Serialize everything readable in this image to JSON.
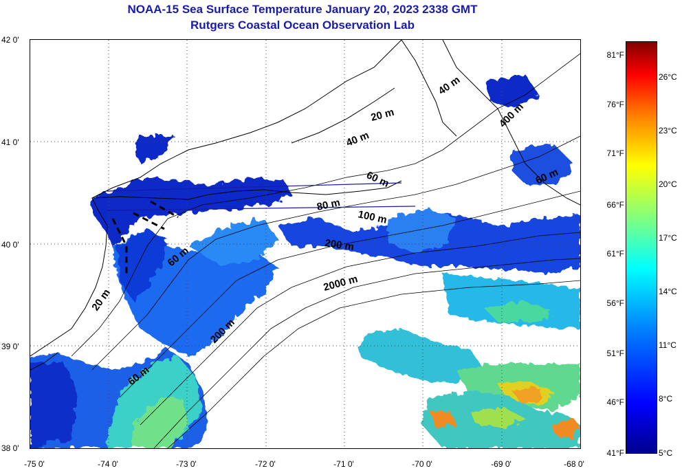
{
  "title": {
    "line1": "NOAA-15 Sea Surface Temperature January 20, 2023 2338 GMT",
    "line2": "Rutgers Coastal Ocean Observation Lab"
  },
  "map": {
    "lat_ticks": [
      "42 0'",
      "41 0'",
      "40 0'",
      "39 0'",
      "38 0'"
    ],
    "lon_ticks": [
      "-75 0'",
      "-74 0'",
      "-73 0'",
      "-72 0'",
      "-71 0'",
      "-70 0'",
      "-69 0'",
      "-68 0'"
    ],
    "lat_range": [
      38,
      42
    ],
    "lon_range": [
      -75,
      -68
    ],
    "grid": "dotted",
    "isobath_labels": [
      {
        "text": "20 m"
      },
      {
        "text": "40 m"
      },
      {
        "text": "60 m"
      },
      {
        "text": "80 m"
      },
      {
        "text": "100 m"
      },
      {
        "text": "200 m"
      },
      {
        "text": "2000 m"
      },
      {
        "text": "40 m"
      },
      {
        "text": "400 m"
      },
      {
        "text": "60 m"
      },
      {
        "text": "60 m"
      },
      {
        "text": "20 m"
      },
      {
        "text": "200 m"
      },
      {
        "text": "60 m"
      }
    ]
  },
  "colorbar": {
    "fahrenheit": [
      "81°F",
      "76°F",
      "71°F",
      "66°F",
      "61°F",
      "56°F",
      "51°F",
      "46°F",
      "41°F"
    ],
    "celsius": [
      "26°C",
      "23°C",
      "20°C",
      "17°C",
      "14°C",
      "11°C",
      "8°C",
      "5°C"
    ],
    "colors": [
      "#00008f",
      "#0000ff",
      "#0080ff",
      "#00ffff",
      "#80ff80",
      "#ffff00",
      "#ff8000",
      "#ff0000",
      "#800000"
    ]
  }
}
